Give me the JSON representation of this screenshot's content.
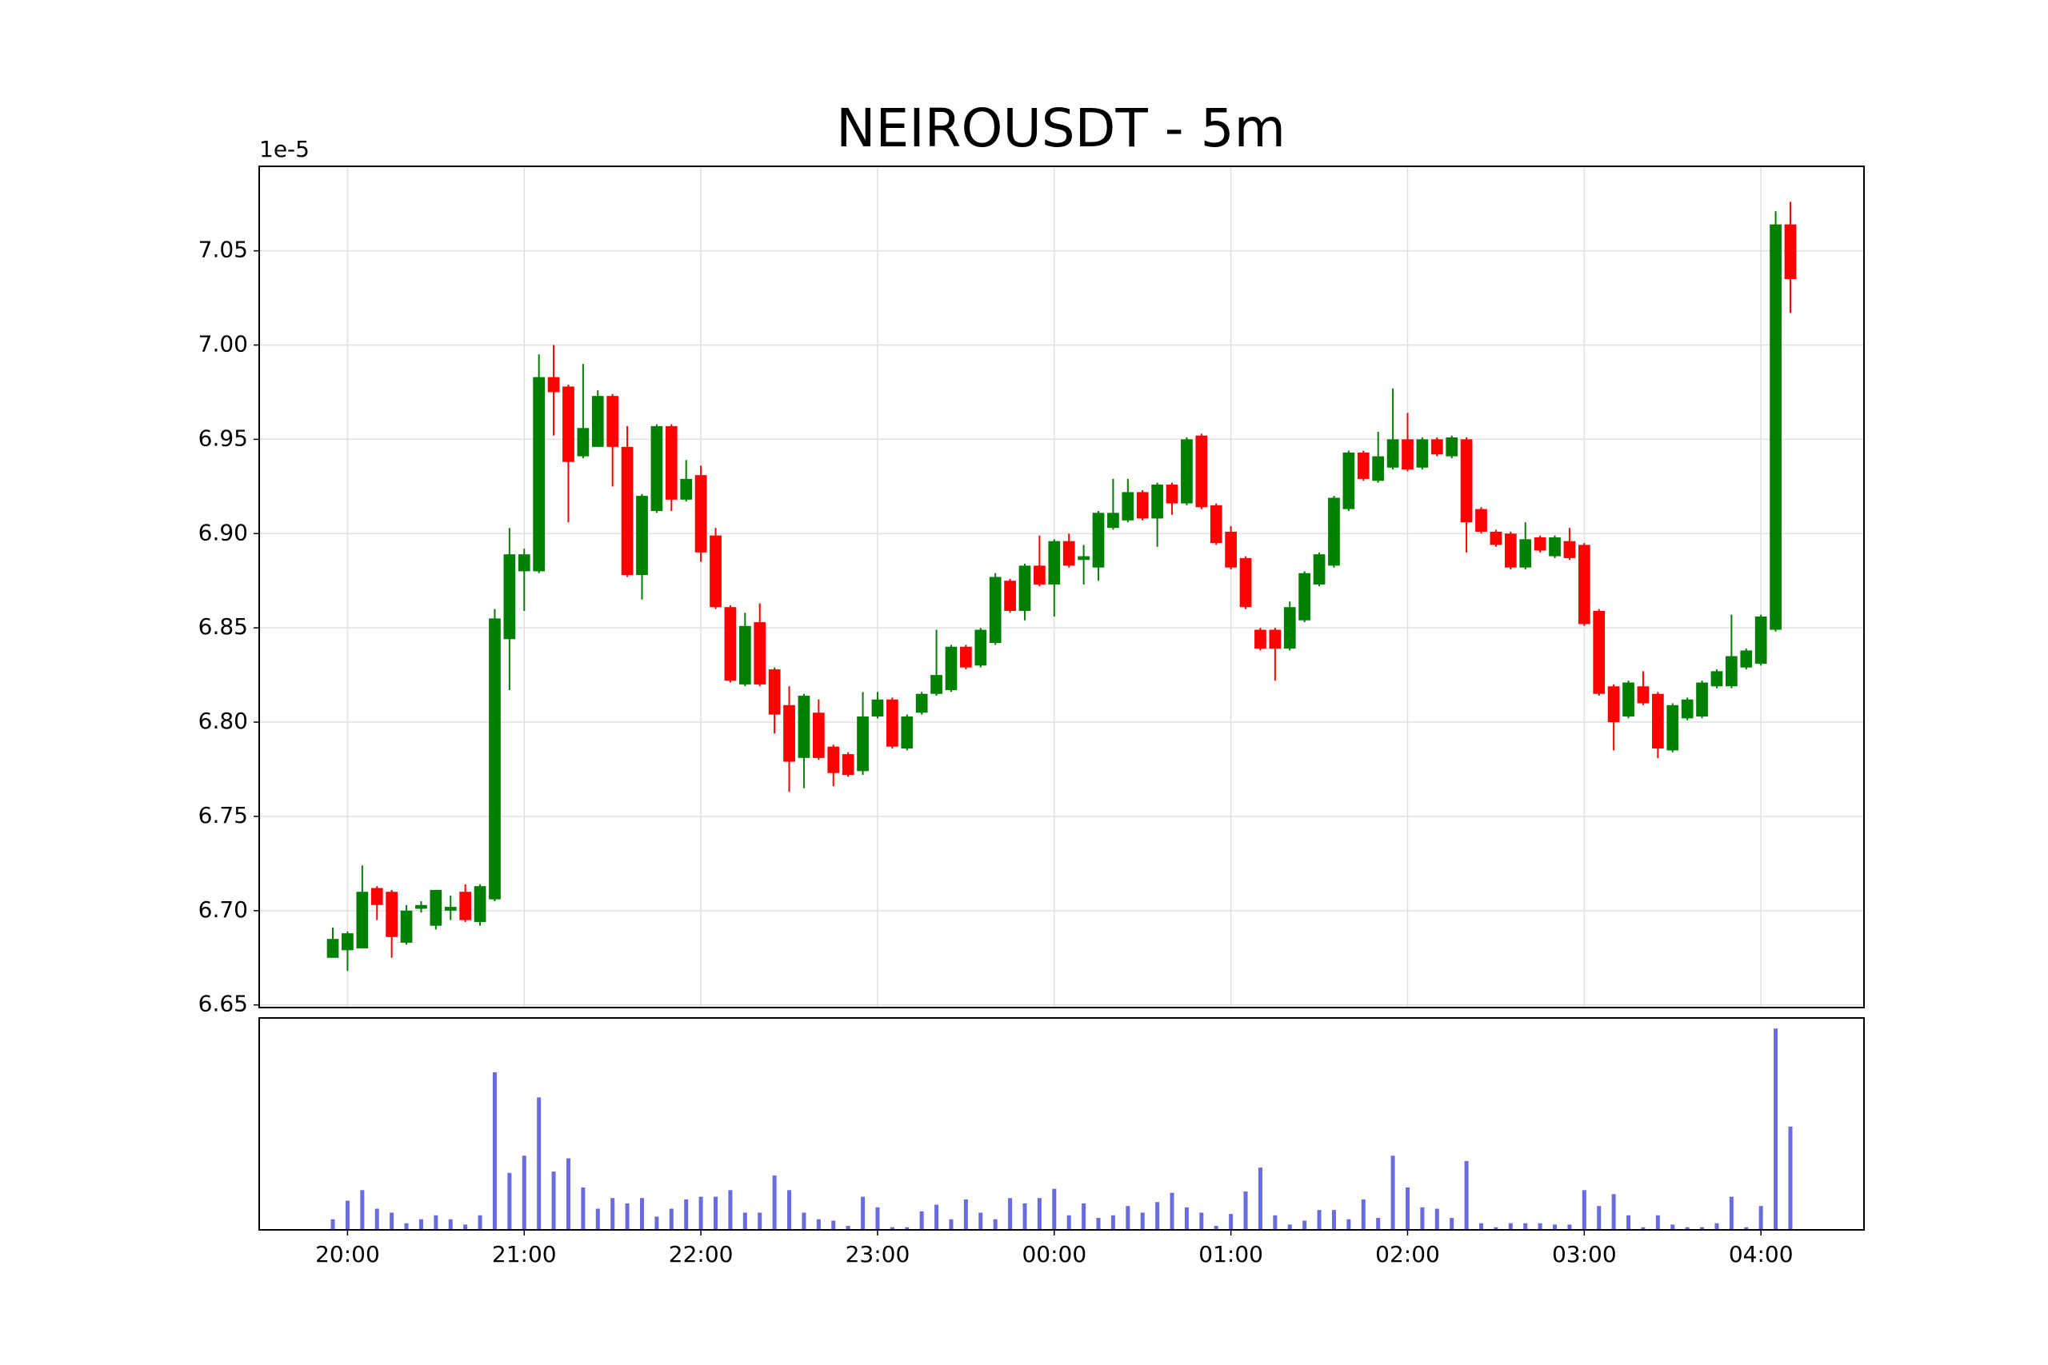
{
  "chart_data": {
    "type": "candlestick",
    "title": "NEIROUSDT - 5m",
    "y_offset_text": "1e-5",
    "x": [
      "19:55",
      "20:00",
      "20:05",
      "20:10",
      "20:15",
      "20:20",
      "20:25",
      "20:30",
      "20:35",
      "20:40",
      "20:45",
      "20:50",
      "20:55",
      "21:00",
      "21:05",
      "21:10",
      "21:15",
      "21:20",
      "21:25",
      "21:30",
      "21:35",
      "21:40",
      "21:45",
      "21:50",
      "21:55",
      "22:00",
      "22:05",
      "22:10",
      "22:15",
      "22:20",
      "22:25",
      "22:30",
      "22:35",
      "22:40",
      "22:45",
      "22:50",
      "22:55",
      "23:00",
      "23:05",
      "23:10",
      "23:15",
      "23:20",
      "23:25",
      "23:30",
      "23:35",
      "23:40",
      "23:45",
      "23:50",
      "23:55",
      "00:00",
      "00:05",
      "00:10",
      "00:15",
      "00:20",
      "00:25",
      "00:30",
      "00:35",
      "00:40",
      "00:45",
      "00:50",
      "00:55",
      "01:00",
      "01:05",
      "01:10",
      "01:15",
      "01:20",
      "01:25",
      "01:30",
      "01:35",
      "01:40",
      "01:45",
      "01:50",
      "01:55",
      "02:00",
      "02:05",
      "02:10",
      "02:15",
      "02:20",
      "02:25",
      "02:30",
      "02:35",
      "02:40",
      "02:45",
      "02:50",
      "02:55",
      "03:00",
      "03:05",
      "03:10",
      "03:15",
      "03:20",
      "03:25",
      "03:30",
      "03:35",
      "03:40",
      "03:45",
      "03:50",
      "03:55",
      "04:00",
      "04:05",
      "04:10"
    ],
    "open": [
      6.675,
      6.679,
      6.68,
      6.712,
      6.71,
      6.683,
      6.701,
      6.692,
      6.7,
      6.71,
      6.694,
      6.706,
      6.844,
      6.88,
      6.88,
      6.983,
      6.978,
      6.941,
      6.946,
      6.973,
      6.946,
      6.878,
      6.912,
      6.957,
      6.918,
      6.931,
      6.899,
      6.861,
      6.82,
      6.853,
      6.828,
      6.809,
      6.781,
      6.805,
      6.787,
      6.783,
      6.774,
      6.803,
      6.812,
      6.786,
      6.805,
      6.815,
      6.817,
      6.84,
      6.83,
      6.842,
      6.875,
      6.859,
      6.883,
      6.873,
      6.896,
      6.886,
      6.882,
      6.903,
      6.907,
      6.922,
      6.908,
      6.926,
      6.916,
      6.952,
      6.915,
      6.901,
      6.887,
      6.849,
      6.849,
      6.839,
      6.854,
      6.873,
      6.883,
      6.913,
      6.943,
      6.928,
      6.935,
      6.95,
      6.935,
      6.95,
      6.941,
      6.95,
      6.913,
      6.901,
      6.9,
      6.882,
      6.898,
      6.888,
      6.896,
      6.894,
      6.859,
      6.819,
      6.803,
      6.819,
      6.815,
      6.785,
      6.802,
      6.803,
      6.819,
      6.819,
      6.829,
      6.831,
      6.849,
      7.064
    ],
    "high": [
      6.691,
      6.689,
      6.724,
      6.713,
      6.711,
      6.703,
      6.705,
      6.711,
      6.708,
      6.714,
      6.714,
      6.86,
      6.903,
      6.892,
      6.995,
      7.0,
      6.979,
      6.99,
      6.976,
      6.974,
      6.957,
      6.921,
      6.958,
      6.958,
      6.939,
      6.936,
      6.903,
      6.862,
      6.858,
      6.863,
      6.829,
      6.819,
      6.815,
      6.812,
      6.788,
      6.784,
      6.816,
      6.816,
      6.813,
      6.804,
      6.816,
      6.849,
      6.841,
      6.841,
      6.85,
      6.879,
      6.876,
      6.884,
      6.899,
      6.897,
      6.9,
      6.894,
      6.912,
      6.929,
      6.929,
      6.923,
      6.927,
      6.927,
      6.951,
      6.953,
      6.916,
      6.904,
      6.888,
      6.85,
      6.85,
      6.864,
      6.88,
      6.89,
      6.92,
      6.944,
      6.944,
      6.954,
      6.977,
      6.964,
      6.951,
      6.951,
      6.952,
      6.951,
      6.914,
      6.902,
      6.901,
      6.906,
      6.899,
      6.899,
      6.903,
      6.895,
      6.86,
      6.82,
      6.822,
      6.827,
      6.816,
      6.81,
      6.813,
      6.822,
      6.828,
      6.857,
      6.839,
      6.857,
      7.071,
      7.076
    ],
    "low": [
      6.675,
      6.668,
      6.68,
      6.695,
      6.675,
      6.682,
      6.699,
      6.69,
      6.695,
      6.694,
      6.692,
      6.705,
      6.817,
      6.859,
      6.879,
      6.952,
      6.906,
      6.94,
      6.946,
      6.925,
      6.877,
      6.865,
      6.911,
      6.912,
      6.917,
      6.885,
      6.86,
      6.821,
      6.819,
      6.819,
      6.794,
      6.763,
      6.765,
      6.78,
      6.766,
      6.771,
      6.772,
      6.802,
      6.786,
      6.785,
      6.804,
      6.814,
      6.816,
      6.828,
      6.829,
      6.841,
      6.858,
      6.854,
      6.872,
      6.856,
      6.882,
      6.873,
      6.875,
      6.902,
      6.906,
      6.907,
      6.893,
      6.91,
      6.915,
      6.913,
      6.894,
      6.881,
      6.86,
      6.838,
      6.822,
      6.838,
      6.853,
      6.872,
      6.882,
      6.912,
      6.928,
      6.927,
      6.934,
      6.933,
      6.934,
      6.941,
      6.94,
      6.89,
      6.9,
      6.893,
      6.881,
      6.881,
      6.89,
      6.887,
      6.886,
      6.851,
      6.814,
      6.785,
      6.802,
      6.809,
      6.781,
      6.784,
      6.801,
      6.802,
      6.818,
      6.818,
      6.828,
      6.83,
      6.848,
      7.017
    ],
    "close": [
      6.685,
      6.688,
      6.71,
      6.703,
      6.686,
      6.7,
      6.703,
      6.711,
      6.702,
      6.695,
      6.713,
      6.855,
      6.889,
      6.889,
      6.983,
      6.975,
      6.938,
      6.956,
      6.973,
      6.946,
      6.878,
      6.92,
      6.957,
      6.918,
      6.929,
      6.89,
      6.861,
      6.822,
      6.851,
      6.82,
      6.804,
      6.779,
      6.814,
      6.781,
      6.773,
      6.772,
      6.803,
      6.812,
      6.787,
      6.803,
      6.815,
      6.825,
      6.84,
      6.829,
      6.849,
      6.877,
      6.859,
      6.883,
      6.873,
      6.896,
      6.883,
      6.888,
      6.911,
      6.911,
      6.922,
      6.908,
      6.926,
      6.916,
      6.95,
      6.914,
      6.895,
      6.882,
      6.861,
      6.839,
      6.839,
      6.861,
      6.879,
      6.889,
      6.919,
      6.943,
      6.929,
      6.941,
      6.95,
      6.934,
      6.95,
      6.942,
      6.951,
      6.906,
      6.901,
      6.894,
      6.882,
      6.897,
      6.891,
      6.898,
      6.887,
      6.852,
      6.815,
      6.8,
      6.821,
      6.81,
      6.786,
      6.809,
      6.812,
      6.821,
      6.827,
      6.835,
      6.838,
      6.856,
      7.064,
      7.035
    ],
    "volume": [
      8,
      22,
      30,
      16,
      13,
      5,
      8,
      11,
      8,
      4,
      11,
      119,
      43,
      56,
      100,
      44,
      54,
      32,
      16,
      24,
      20,
      24,
      10,
      16,
      23,
      25,
      25,
      30,
      13,
      13,
      41,
      30,
      13,
      8,
      7,
      3,
      25,
      17,
      2,
      2,
      14,
      19,
      8,
      23,
      13,
      8,
      24,
      20,
      24,
      31,
      11,
      20,
      9,
      11,
      18,
      13,
      21,
      28,
      17,
      13,
      3,
      12,
      29,
      47,
      11,
      4,
      7,
      15,
      15,
      8,
      23,
      9,
      56,
      32,
      17,
      16,
      9,
      52,
      5,
      2,
      5,
      5,
      5,
      4,
      4,
      30,
      18,
      27,
      11,
      2,
      11,
      4,
      2,
      2,
      5,
      25,
      2,
      18,
      152,
      78
    ],
    "up_color": "#008000",
    "down_color": "#ff0000",
    "volume_color": "#6b6be0",
    "xlim": [
      "19:30",
      "04:35"
    ],
    "xticks": [
      "20:00",
      "21:00",
      "22:00",
      "23:00",
      "00:00",
      "01:00",
      "02:00",
      "03:00",
      "04:00"
    ],
    "ylim": [
      6.6486,
      7.0948
    ],
    "yticks": [
      6.65,
      {
        "value": 6.7,
        "label": "6.70"
      },
      6.75,
      {
        "value": 6.8,
        "label": "6.80"
      },
      6.85,
      {
        "value": 6.9,
        "label": "6.90"
      },
      6.95,
      {
        "value": 7.0,
        "label": "7.00"
      },
      7.05
    ],
    "volume_ylim": [
      0,
      160
    ],
    "grid": true
  }
}
